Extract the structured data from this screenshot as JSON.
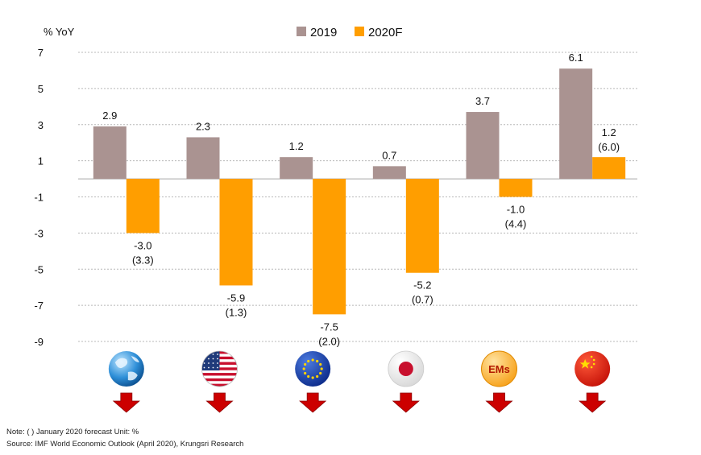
{
  "chart_data": {
    "type": "bar",
    "ylabel": "% YoY",
    "ylim": [
      -9,
      7
    ],
    "yticks": [
      7,
      5,
      3,
      1,
      -1,
      -3,
      -5,
      -7,
      -9
    ],
    "ytick_labels": [
      "7",
      "5",
      "3",
      "1",
      "-1",
      "-3",
      "-5",
      "-7",
      "-9"
    ],
    "grid": true,
    "legend_position": "top-center",
    "categories": [
      "World",
      "US",
      "Euro Area",
      "Japan",
      "EMs",
      "China"
    ],
    "category_icons": [
      "globe-icon",
      "us-flag-icon",
      "eu-flag-icon",
      "japan-flag-icon",
      "ems-badge-icon",
      "china-flag-icon"
    ],
    "icon_texts": [
      "",
      "",
      "",
      "",
      "EMs",
      ""
    ],
    "series": [
      {
        "name": "2019",
        "color": "#AA9391",
        "values": [
          2.9,
          2.3,
          1.2,
          0.7,
          3.7,
          6.1
        ],
        "labels": [
          "2.9",
          "2.3",
          "1.2",
          "0.7",
          "3.7",
          "6.1"
        ]
      },
      {
        "name": "2020F",
        "color": "#FF9E00",
        "values": [
          -3.0,
          -5.9,
          -7.5,
          -5.2,
          -1.0,
          1.2
        ],
        "labels": [
          "-3.0",
          "-5.9",
          "-7.5",
          "-5.2",
          "-1.0",
          "1.2"
        ],
        "sublabels": [
          "(3.3)",
          "(1.3)",
          "(2.0)",
          "(0.7)",
          "(4.4)",
          "(6.0)"
        ]
      }
    ],
    "down_arrow_color": "#CC0000"
  },
  "notes": {
    "line1": "Note: (   ) January 2020 forecast  Unit: %",
    "line2": "Source: IMF World Economic Outlook (April 2020), Krungsri Research"
  }
}
